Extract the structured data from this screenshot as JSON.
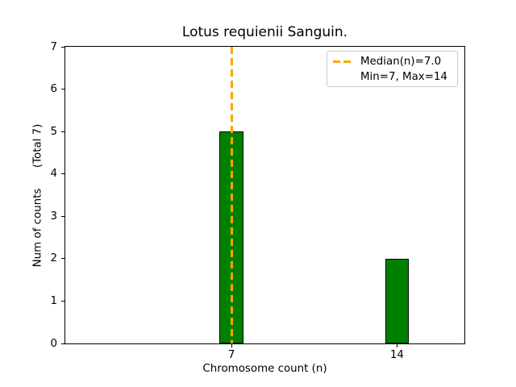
{
  "legend": {
    "entries": [
      {
        "label": "Median(n)=7.0",
        "marker": "orange-dashed-line"
      },
      {
        "label": "Min=7, Max=14",
        "marker": "none"
      }
    ],
    "border_color": "#c9c9c9",
    "position": "upper right"
  },
  "chart_data": {
    "type": "bar",
    "title": "Lotus requienii Sanguin.",
    "xlabel": "Chromosome count (n)",
    "ylabel": "Num of counts      (Total 7)",
    "categories": [
      7,
      14
    ],
    "values": [
      5,
      2
    ],
    "total_counts": 7,
    "min": 7,
    "max": 14,
    "median": 7.0,
    "bar_color": "#008000",
    "bar_edge_color": "#000000",
    "bar_width": 1,
    "median_line": {
      "value": 7.0,
      "color": "#FFA500",
      "style": "dashed",
      "linewidth": 3
    },
    "xlim": [
      -0.03,
      16.85
    ],
    "ylim": [
      0,
      7
    ],
    "yticks": [
      0,
      1,
      2,
      3,
      4,
      5,
      6,
      7
    ],
    "xticks": [
      7,
      14
    ],
    "grid": false,
    "background_color": "#ffffff",
    "axes_edge_color": "#000000"
  }
}
